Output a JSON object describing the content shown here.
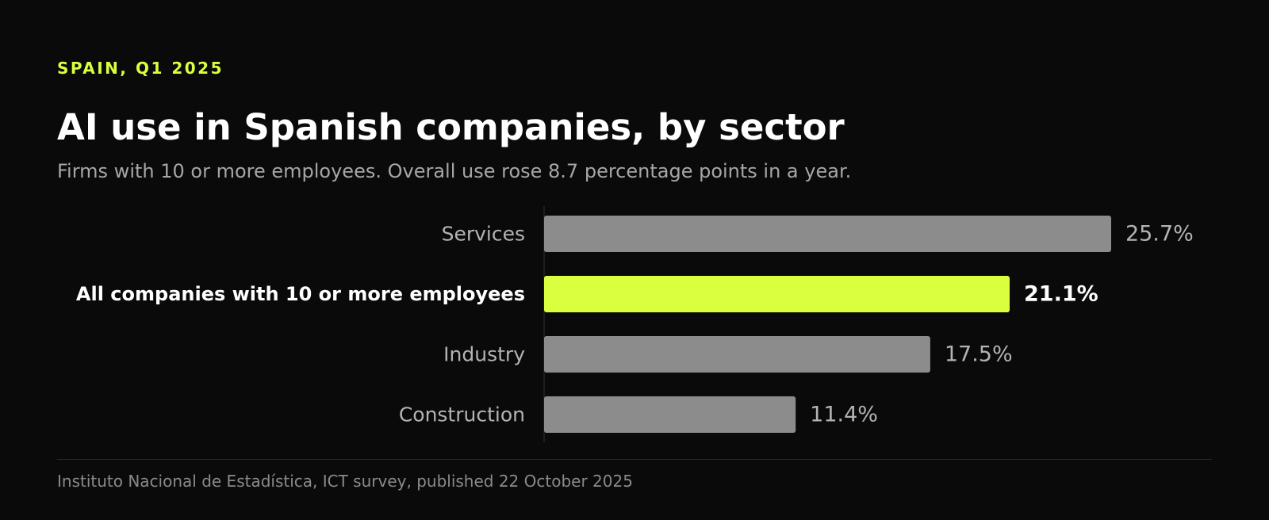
{
  "header": {
    "kicker": "SPAIN, Q1 2025",
    "title": "AI use in Spanish companies, by sector",
    "subtitle": "Firms with 10 or more employees. Overall use rose 8.7 percentage points in a year."
  },
  "footer": {
    "source": "Instituto Nacional de Estadística, ICT survey, published 22 October 2025"
  },
  "colors": {
    "background": "#0a0a0a",
    "bar": "#8c8c8c",
    "highlight_bar": "#d9ff3f",
    "label": "#b3b3b3",
    "highlight_label": "#ffffff"
  },
  "chart_data": {
    "type": "bar",
    "orientation": "horizontal",
    "categories": [
      "Services",
      "All companies with 10 or more employees",
      "Industry",
      "Construction"
    ],
    "values": [
      25.7,
      21.1,
      17.5,
      11.4
    ],
    "value_labels": [
      "25.7%",
      "21.1%",
      "17.5%",
      "11.4%"
    ],
    "highlighted": [
      false,
      true,
      false,
      false
    ],
    "unit": "%",
    "xlim": [
      0,
      25.7
    ],
    "grid": false,
    "legend": "none"
  }
}
